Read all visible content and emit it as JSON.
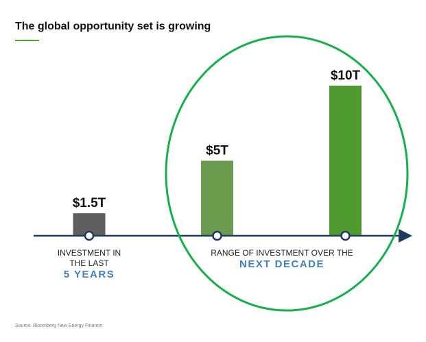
{
  "header": {
    "title": "The global opportunity set is growing",
    "accent_color": "#4aa52e"
  },
  "chart_data": {
    "type": "bar",
    "title": "The global opportunity set is growing",
    "xlabel": "",
    "ylabel": "",
    "units": "trillion USD",
    "ylim": [
      0,
      10
    ],
    "grid": false,
    "categories": [
      "Last 5 years",
      "Next decade (low)",
      "Next decade (high)"
    ],
    "values": [
      1.5,
      5,
      10
    ],
    "data_labels": [
      "$1.5T",
      "$5T",
      "$10T"
    ],
    "bar_colors": [
      "#5f5f5f",
      "#6a9a4c",
      "#4f9a2f"
    ],
    "axis_color": "#1f3a5f",
    "annotations": [
      {
        "lines": [
          "INVESTMENT IN",
          "THE LAST"
        ],
        "highlight": "5 YEARS"
      },
      {
        "lines": [
          "RANGE OF  INVESTMENT OVER THE"
        ],
        "highlight": "NEXT DECADE"
      }
    ],
    "highlight_color": "#3f7fbf",
    "highlight_ellipse": {
      "color": "#14b04a",
      "encloses": [
        "Next decade (low)",
        "Next decade (high)"
      ]
    }
  },
  "footer": {
    "source": "Source: Bloomberg New Energy Finance"
  }
}
